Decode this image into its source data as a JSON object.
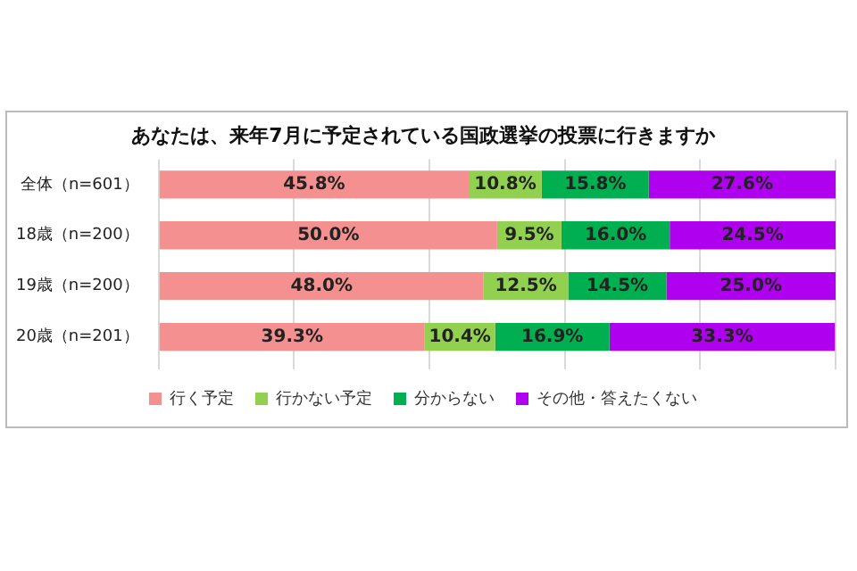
{
  "chart_data": {
    "type": "bar",
    "orientation": "horizontal",
    "stacked": true,
    "title": "あなたは、来年7月に予定されている国政選挙の投票に行きますか",
    "categories": [
      "全体（n=601）",
      "18歳（n=200）",
      "19歳（n=200）",
      "20歳（n=201）"
    ],
    "series": [
      {
        "name": "行く予定",
        "color": "#f4908f",
        "values": [
          45.8,
          50.0,
          48.0,
          39.3
        ],
        "value_labels": [
          "45.8%",
          "50.0%",
          "48.0%",
          "39.3%"
        ]
      },
      {
        "name": "行かない予定",
        "color": "#92d050",
        "values": [
          10.8,
          9.5,
          12.5,
          10.4
        ],
        "value_labels": [
          "10.8%",
          "9.5%",
          "12.5%",
          "10.4%"
        ]
      },
      {
        "name": "分からない",
        "color": "#00b050",
        "values": [
          15.8,
          16.0,
          14.5,
          16.9
        ],
        "value_labels": [
          "15.8%",
          "16.0%",
          "14.5%",
          "16.9%"
        ]
      },
      {
        "name": "その他・答えたくない",
        "color": "#b000f0",
        "values": [
          27.6,
          24.5,
          25.0,
          33.3
        ],
        "value_labels": [
          "27.6%",
          "24.5%",
          "25.0%",
          "33.3%"
        ]
      }
    ],
    "tick_labels": "y",
    "grid": "x",
    "legend": "bottom"
  }
}
